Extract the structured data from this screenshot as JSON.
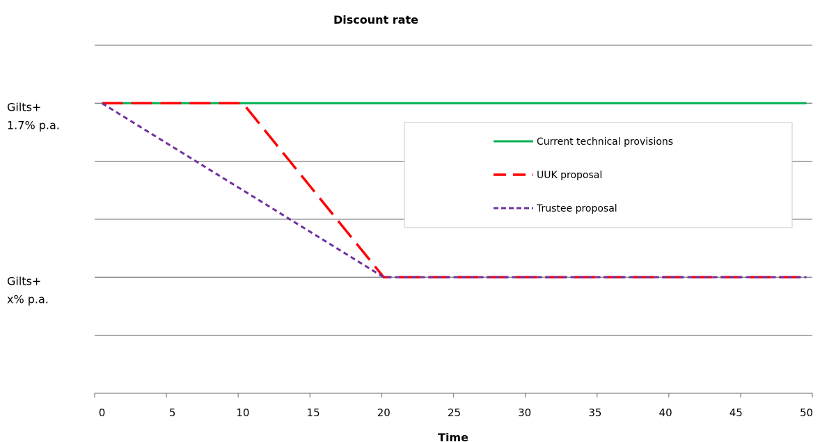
{
  "chart_data": {
    "type": "line",
    "title": "Discount rate",
    "xlabel": "Time",
    "ylabel": "",
    "x_ticks": [
      0,
      5,
      10,
      15,
      20,
      25,
      30,
      35,
      40,
      45,
      50
    ],
    "xlim": [
      0,
      50
    ],
    "ylim": [
      0,
      6
    ],
    "y_ticks": [
      {
        "value": 5,
        "lines": [
          "Gilts+",
          "1.7% p.a."
        ]
      },
      {
        "value": 2,
        "lines": [
          "Gilts+",
          "x% p.a."
        ]
      }
    ],
    "grid": true,
    "legend_position": "right",
    "series": [
      {
        "name": "Current technical provisions",
        "color": "#00b050",
        "dash": "solid",
        "points": [
          [
            0,
            5
          ],
          [
            50,
            5
          ]
        ]
      },
      {
        "name": "UUK proposal",
        "color": "#ff0000",
        "dash": "long-dash",
        "points": [
          [
            0,
            5
          ],
          [
            10,
            5
          ],
          [
            20,
            2
          ],
          [
            50,
            2
          ]
        ]
      },
      {
        "name": "Trustee proposal",
        "color": "#7030a0",
        "dash": "short-dash",
        "points": [
          [
            0,
            5
          ],
          [
            20,
            2
          ],
          [
            50,
            2
          ]
        ]
      }
    ]
  }
}
